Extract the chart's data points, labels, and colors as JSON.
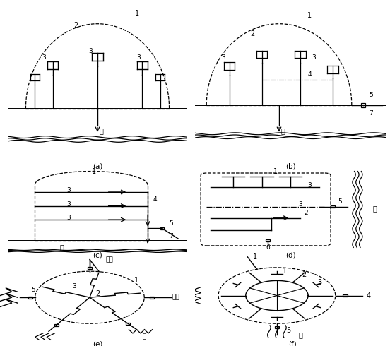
{
  "bg_color": "#ffffff",
  "labels": {
    "a": "(a)",
    "b": "(b)",
    "c": "(c)",
    "d": "(d)",
    "e": "(e)",
    "f": "(f)"
  },
  "river_text": "河",
  "spray_text": "灌派",
  "fig_width": 5.52,
  "fig_height": 4.9
}
